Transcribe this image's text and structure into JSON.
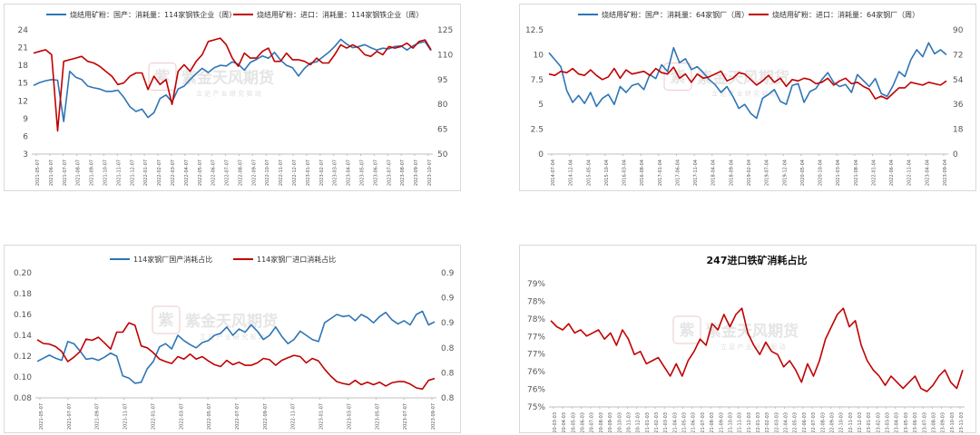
{
  "watermark": {
    "text": "紫金天风期货",
    "sub": "立 足 产 业 研 究 驱 动",
    "seal_char": "紫"
  },
  "colors": {
    "blue": "#2E75B6",
    "red": "#C00000",
    "axis": "#bfbfbf"
  },
  "chart_data": [
    {
      "id": "p1",
      "type": "line",
      "title": "",
      "legend_placement": "top",
      "series": [
        {
          "name": "烧结用矿粉：国产：消耗量：114家钢铁企业（周）",
          "axis": "left",
          "color": "#2E75B6",
          "values": [
            14.6,
            15.1,
            15.4,
            15.6,
            15.5,
            8.5,
            17.0,
            16.0,
            15.6,
            14.5,
            14.2,
            14.0,
            13.6,
            13.6,
            13.8,
            12.6,
            11.0,
            10.2,
            10.6,
            9.2,
            10.0,
            12.4,
            13.0,
            11.8,
            14.0,
            14.5,
            15.6,
            16.6,
            17.5,
            16.8,
            17.6,
            18.0,
            17.9,
            18.6,
            18.2,
            17.2,
            18.5,
            19.0,
            19.6,
            19.2,
            20.2,
            18.9,
            18.0,
            17.6,
            16.2,
            17.5,
            18.4,
            18.6,
            19.4,
            20.2,
            21.2,
            22.4,
            21.6,
            21.0,
            21.2,
            21.5,
            21.0,
            20.6,
            20.9,
            20.8,
            21.2,
            21.3,
            20.6,
            21.3,
            21.8,
            22.0,
            20.5
          ]
        },
        {
          "name": "烧结用矿粉：进口：消耗量：114家钢铁企业（周）",
          "axis": "right",
          "color": "#C00000",
          "values": [
            111,
            112,
            113,
            110,
            64,
            106,
            107,
            108,
            109,
            106,
            105,
            103,
            100,
            97,
            92,
            93,
            97,
            99,
            99,
            89,
            97,
            92,
            95,
            80,
            100,
            104,
            100,
            106,
            110,
            118,
            119,
            120,
            116,
            108,
            103,
            111,
            108,
            108,
            112,
            114,
            106,
            106,
            111,
            107,
            107,
            106,
            104,
            108,
            105,
            105,
            110,
            116,
            114,
            116,
            114,
            110,
            109,
            112,
            110,
            115,
            114,
            115,
            117,
            114,
            118,
            119,
            113
          ]
        }
      ],
      "x_tick_labels": [
        "2021-05-07",
        "2021-06-07",
        "2021-07-07",
        "2021-08-07",
        "2021-09-07",
        "2021-10-07",
        "2021-11-07",
        "2021-12-07",
        "2022-01-07",
        "2022-02-07",
        "2022-03-07",
        "2022-04-07",
        "2022-05-07",
        "2022-06-07",
        "2022-07-07",
        "2022-08-07",
        "2022-09-07",
        "2022-10-07",
        "2022-11-07",
        "2022-12-07",
        "2023-01-07",
        "2023-02-07",
        "2023-03-07",
        "2023-04-07",
        "2023-05-07",
        "2023-06-07",
        "2023-07-07",
        "2023-08-07",
        "2023-09-07",
        "2023-10-07"
      ],
      "y_left": {
        "min": 3,
        "max": 24,
        "ticks": [
          "3",
          "6",
          "9",
          "12",
          "15",
          "18",
          "21",
          "24"
        ]
      },
      "y_right": {
        "min": 50,
        "max": 125,
        "ticks": [
          "50",
          "65",
          "80",
          "95",
          "110",
          "125"
        ]
      }
    },
    {
      "id": "p2",
      "type": "line",
      "title": "",
      "legend_placement": "top",
      "series": [
        {
          "name": "烧结用矿粉：国产：消耗量：64家钢厂（周）",
          "axis": "left",
          "color": "#2E75B6",
          "values": [
            10.2,
            9.5,
            8.8,
            6.4,
            5.2,
            5.9,
            5.1,
            6.2,
            4.8,
            5.6,
            6.0,
            5.0,
            6.8,
            6.2,
            6.9,
            7.1,
            6.5,
            8.0,
            7.6,
            9.0,
            8.3,
            10.7,
            9.2,
            9.6,
            8.5,
            8.8,
            8.2,
            7.5,
            7.0,
            6.2,
            6.8,
            5.8,
            4.6,
            5.0,
            4.1,
            3.6,
            5.6,
            6.0,
            6.5,
            5.3,
            5.0,
            6.9,
            7.1,
            5.2,
            6.3,
            6.6,
            7.5,
            8.2,
            7.2,
            6.8,
            7.0,
            6.2,
            8.0,
            7.4,
            6.8,
            7.6,
            6.1,
            5.8,
            6.9,
            8.3,
            7.8,
            9.5,
            10.5,
            9.8,
            11.2,
            10.1,
            10.5,
            10.0
          ]
        },
        {
          "name": "烧结用矿粉：进口：消耗量：64家钢厂（周）",
          "axis": "right",
          "color": "#C00000",
          "values": [
            58,
            57,
            60,
            59,
            62,
            58,
            57,
            61,
            57,
            54,
            56,
            62,
            55,
            61,
            58,
            59,
            60,
            57,
            62,
            59,
            58,
            63,
            55,
            58,
            52,
            58,
            55,
            56,
            58,
            60,
            53,
            55,
            59,
            58,
            54,
            50,
            53,
            57,
            52,
            55,
            49,
            54,
            53,
            55,
            54,
            51,
            52,
            55,
            50,
            53,
            55,
            51,
            52,
            49,
            47,
            40,
            42,
            40,
            44,
            48,
            48,
            52,
            51,
            50,
            52,
            51,
            50,
            53
          ]
        }
      ],
      "x_tick_labels": [
        "2014-07-04",
        "2014-12-04",
        "2015-05-04",
        "2015-10-04",
        "2016-03-04",
        "2016-08-04",
        "2017-01-04",
        "2017-06-04",
        "2017-11-04",
        "2018-04-04",
        "2018-09-04",
        "2019-02-04",
        "2019-07-04",
        "2019-12-04",
        "2020-05-04",
        "2020-10-04",
        "2021-03-04",
        "2021-08-04",
        "2022-01-04",
        "2022-06-04",
        "2022-11-04",
        "2023-04-04",
        "2023-09-04"
      ],
      "y_left": {
        "min": 0,
        "max": 12.5,
        "ticks": [
          "0",
          "2.5",
          "5",
          "7.5",
          "10",
          "12.5"
        ]
      },
      "y_right": {
        "min": 0,
        "max": 90,
        "ticks": [
          "0",
          "18",
          "36",
          "54",
          "72",
          "90"
        ]
      }
    },
    {
      "id": "p3",
      "type": "line",
      "title": "",
      "legend_placement": "top",
      "series": [
        {
          "name": "114家钢厂国产消耗占比",
          "axis": "left",
          "color": "#2E75B6",
          "values": [
            0.115,
            0.118,
            0.121,
            0.118,
            0.116,
            0.134,
            0.132,
            0.125,
            0.117,
            0.118,
            0.116,
            0.119,
            0.123,
            0.12,
            0.101,
            0.099,
            0.094,
            0.095,
            0.108,
            0.115,
            0.129,
            0.132,
            0.127,
            0.14,
            0.135,
            0.131,
            0.128,
            0.133,
            0.135,
            0.14,
            0.142,
            0.148,
            0.14,
            0.146,
            0.143,
            0.15,
            0.144,
            0.136,
            0.14,
            0.148,
            0.139,
            0.132,
            0.136,
            0.144,
            0.14,
            0.136,
            0.134,
            0.152,
            0.156,
            0.16,
            0.158,
            0.159,
            0.154,
            0.16,
            0.157,
            0.152,
            0.158,
            0.162,
            0.155,
            0.151,
            0.154,
            0.15,
            0.16,
            0.163,
            0.15,
            0.153
          ]
        },
        {
          "name": "114家钢厂进口消耗占比",
          "axis": "right",
          "color": "#C00000",
          "values": [
            0.893,
            0.887,
            0.886,
            0.882,
            0.874,
            0.858,
            0.865,
            0.874,
            0.894,
            0.892,
            0.897,
            0.888,
            0.878,
            0.905,
            0.905,
            0.92,
            0.916,
            0.883,
            0.88,
            0.872,
            0.862,
            0.858,
            0.855,
            0.866,
            0.862,
            0.87,
            0.862,
            0.866,
            0.859,
            0.853,
            0.85,
            0.86,
            0.853,
            0.857,
            0.852,
            0.852,
            0.856,
            0.863,
            0.861,
            0.852,
            0.86,
            0.864,
            0.868,
            0.866,
            0.856,
            0.863,
            0.859,
            0.846,
            0.835,
            0.826,
            0.823,
            0.821,
            0.828,
            0.821,
            0.825,
            0.821,
            0.825,
            0.819,
            0.824,
            0.826,
            0.826,
            0.822,
            0.816,
            0.814,
            0.828,
            0.831
          ]
        }
      ],
      "x_tick_labels": [
        "2021-05-07",
        "2021-07-07",
        "2021-09-07",
        "2021-11-07",
        "2022-01-07",
        "2022-03-07",
        "2022-05-07",
        "2022-07-07",
        "2022-09-07",
        "2022-11-07",
        "2023-01-07",
        "2023-03-07",
        "2023-05-07",
        "2023-07-07",
        "2023-09-07"
      ],
      "y_left": {
        "min": 0.08,
        "max": 0.2,
        "ticks": [
          "0.08",
          "0.10",
          "0.12",
          "0.14",
          "0.16",
          "0.18",
          "0.20"
        ]
      },
      "y_right": {
        "min": 0.8,
        "max": 1.0,
        "ticks": [
          "0.8",
          "0.8",
          "0.8",
          "0.9",
          "0.9",
          "0.9"
        ]
      }
    },
    {
      "id": "p4",
      "type": "line",
      "title": "247进口铁矿消耗占比",
      "legend_placement": "none",
      "series": [
        {
          "name": "",
          "axis": "left",
          "color": "#C00000",
          "values": [
            0.778,
            0.776,
            0.775,
            0.777,
            0.774,
            0.775,
            0.773,
            0.774,
            0.775,
            0.772,
            0.774,
            0.77,
            0.775,
            0.772,
            0.767,
            0.768,
            0.764,
            0.765,
            0.766,
            0.763,
            0.76,
            0.764,
            0.76,
            0.765,
            0.768,
            0.772,
            0.77,
            0.777,
            0.775,
            0.78,
            0.776,
            0.78,
            0.782,
            0.774,
            0.77,
            0.767,
            0.771,
            0.768,
            0.767,
            0.763,
            0.765,
            0.762,
            0.758,
            0.764,
            0.76,
            0.765,
            0.772,
            0.776,
            0.78,
            0.782,
            0.776,
            0.778,
            0.77,
            0.765,
            0.762,
            0.76,
            0.757,
            0.76,
            0.758,
            0.756,
            0.758,
            0.76,
            0.756,
            0.755,
            0.757,
            0.76,
            0.762,
            0.758,
            0.756,
            0.762
          ]
        }
      ],
      "x_tick_labels": [
        "2020-03-03",
        "2020-04-03",
        "2020-05-03",
        "2020-06-03",
        "2020-07-03",
        "2020-08-03",
        "2020-09-03",
        "2020-10-03",
        "2020-11-03",
        "2020-12-03",
        "2021-01-03",
        "2021-02-03",
        "2021-03-03",
        "2021-04-03",
        "2021-05-03",
        "2021-06-03",
        "2021-07-03",
        "2021-08-03",
        "2021-09-03",
        "2021-10-03",
        "2021-11-03",
        "2021-12-03",
        "2022-01-03",
        "2022-02-03",
        "2022-03-03",
        "2022-04-03",
        "2022-05-03",
        "2022-06-03",
        "2022-07-03",
        "2022-08-03",
        "2022-09-03",
        "2022-10-03",
        "2022-11-03",
        "2022-12-03",
        "2023-01-03",
        "2023-02-03",
        "2023-03-03",
        "2023-04-03",
        "2023-05-03",
        "2023-06-03",
        "2023-07-03",
        "2023-08-03",
        "2023-09-03",
        "2023-10-03",
        "2023-11-03"
      ],
      "y_left": {
        "min": 0.75,
        "max": 0.79,
        "ticks": [
          "75%",
          "76%",
          "76%",
          "77%",
          "77%",
          "78%",
          "78%",
          "79%"
        ]
      },
      "y_right": null
    }
  ]
}
